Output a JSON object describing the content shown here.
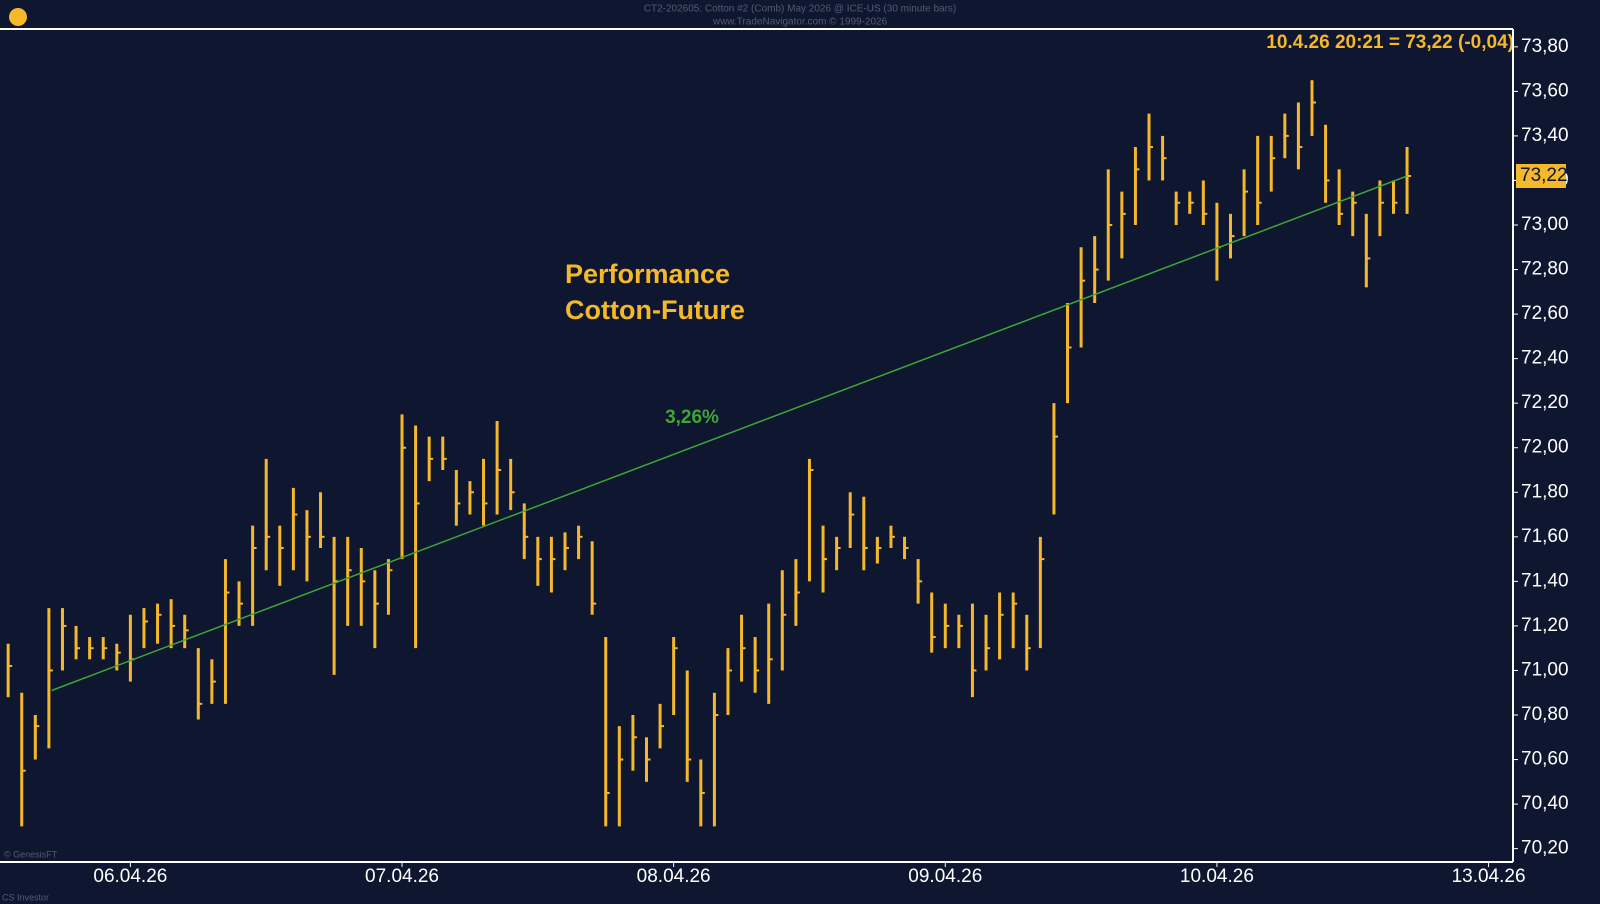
{
  "chart_data": {
    "type": "ohlc",
    "header": "CT2-202605: Cotton #2 (Comb) May 2026 @ ICE-US (30 minute bars)",
    "subheader": "www.TradeNavigator.com © 1999-2026",
    "title": "Performance",
    "subtitle": "Cotton-Future",
    "last_quote": "10.4.26 20:21 = 73,22 (-0,04)",
    "price_tag": {
      "value": 73.22,
      "label": "73,22"
    },
    "source": "© GenesisFT",
    "footer": "CS Investor",
    "color": "#f5b82a",
    "xlim": [
      -0.48,
      5.09
    ],
    "xticks": [
      {
        "value": 0,
        "label": "06.04.26"
      },
      {
        "value": 1,
        "label": "07.04.26"
      },
      {
        "value": 2,
        "label": "08.04.26"
      },
      {
        "value": 3,
        "label": "09.04.26"
      },
      {
        "value": 4,
        "label": "10.04.26"
      },
      {
        "value": 5,
        "label": "13.04.26"
      }
    ],
    "ylim": [
      70.14,
      73.88
    ],
    "yticks": [
      {
        "value": 70.2,
        "label": "70,20"
      },
      {
        "value": 70.4,
        "label": "70,40"
      },
      {
        "value": 70.6,
        "label": "70,60"
      },
      {
        "value": 70.8,
        "label": "70,80"
      },
      {
        "value": 71.0,
        "label": "71,00"
      },
      {
        "value": 71.2,
        "label": "71,20"
      },
      {
        "value": 71.4,
        "label": "71,40"
      },
      {
        "value": 71.6,
        "label": "71,60"
      },
      {
        "value": 71.8,
        "label": "71,80"
      },
      {
        "value": 72.0,
        "label": "72,00"
      },
      {
        "value": 72.2,
        "label": "72,20"
      },
      {
        "value": 72.4,
        "label": "72,40"
      },
      {
        "value": 72.6,
        "label": "72,60"
      },
      {
        "value": 72.8,
        "label": "72,80"
      },
      {
        "value": 73.0,
        "label": "73,00"
      },
      {
        "value": 73.2,
        "label": "73,20"
      },
      {
        "value": 73.4,
        "label": "73,40"
      },
      {
        "value": 73.6,
        "label": "73,60"
      },
      {
        "value": 73.8,
        "label": "73,80"
      }
    ],
    "x": [
      -0.45,
      -0.4,
      -0.35,
      -0.3,
      -0.25,
      -0.2,
      -0.15,
      -0.1,
      -0.05,
      0,
      0.05,
      0.1,
      0.15,
      0.2,
      0.25,
      0.3,
      0.35,
      0.4,
      0.45,
      0.5,
      0.55,
      0.6,
      0.65,
      0.7,
      0.75,
      0.8,
      0.85,
      0.9,
      0.95,
      1,
      1.05,
      1.1,
      1.15,
      1.2,
      1.25,
      1.3,
      1.35,
      1.4,
      1.45,
      1.5,
      1.55,
      1.6,
      1.65,
      1.7,
      1.75,
      1.8,
      1.85,
      1.9,
      1.95,
      2,
      2.05,
      2.1,
      2.15,
      2.2,
      2.25,
      2.3,
      2.35,
      2.4,
      2.45,
      2.5,
      2.55,
      2.6,
      2.65,
      2.7,
      2.75,
      2.8,
      2.85,
      2.9,
      2.95,
      3,
      3.05,
      3.1,
      3.15,
      3.2,
      3.25,
      3.3,
      3.35,
      3.4,
      3.45,
      3.5,
      3.55,
      3.6,
      3.65,
      3.7,
      3.75,
      3.8,
      3.85,
      3.9,
      3.95,
      4,
      4.05,
      4.1,
      4.15,
      4.2,
      4.25,
      4.3,
      4.35,
      4.4,
      4.45,
      4.5,
      4.55,
      4.6,
      4.65,
      4.7
    ],
    "high": [
      71.12,
      70.9,
      70.8,
      71.28,
      71.28,
      71.2,
      71.15,
      71.15,
      71.12,
      71.25,
      71.28,
      71.3,
      71.32,
      71.25,
      71.1,
      71.05,
      71.5,
      71.4,
      71.65,
      71.95,
      71.65,
      71.82,
      71.72,
      71.8,
      71.6,
      71.6,
      71.55,
      71.45,
      71.5,
      72.15,
      72.1,
      72.05,
      72.05,
      71.9,
      71.85,
      71.95,
      72.12,
      71.95,
      71.75,
      71.6,
      71.6,
      71.62,
      71.65,
      71.58,
      71.15,
      70.75,
      70.8,
      70.7,
      70.85,
      71.15,
      71.0,
      70.6,
      70.9,
      71.1,
      71.25,
      71.15,
      71.3,
      71.45,
      71.5,
      71.95,
      71.65,
      71.6,
      71.8,
      71.78,
      71.6,
      71.65,
      71.6,
      71.5,
      71.35,
      71.3,
      71.25,
      71.3,
      71.25,
      71.35,
      71.35,
      71.25,
      71.6,
      72.2,
      72.65,
      72.9,
      72.95,
      73.25,
      73.15,
      73.35,
      73.5,
      73.4,
      73.15,
      73.15,
      73.2,
      73.1,
      73.05,
      73.25,
      73.4,
      73.4,
      73.5,
      73.55,
      73.65,
      73.45,
      73.25,
      73.15,
      73.05,
      73.2,
      73.2,
      73.35
    ],
    "low": [
      70.88,
      70.3,
      70.6,
      70.65,
      71.0,
      71.05,
      71.05,
      71.05,
      71.0,
      70.95,
      71.1,
      71.12,
      71.1,
      71.1,
      70.78,
      70.85,
      70.85,
      71.2,
      71.2,
      71.45,
      71.38,
      71.45,
      71.4,
      71.55,
      70.98,
      71.2,
      71.2,
      71.1,
      71.25,
      71.5,
      71.1,
      71.85,
      71.9,
      71.65,
      71.7,
      71.65,
      71.7,
      71.72,
      71.5,
      71.38,
      71.35,
      71.45,
      71.5,
      71.25,
      70.3,
      70.3,
      70.55,
      70.5,
      70.65,
      70.8,
      70.5,
      70.3,
      70.3,
      70.8,
      70.95,
      70.9,
      70.85,
      71.0,
      71.2,
      71.4,
      71.35,
      71.45,
      71.55,
      71.45,
      71.48,
      71.55,
      71.5,
      71.3,
      71.08,
      71.1,
      71.1,
      70.88,
      71.0,
      71.05,
      71.1,
      71.0,
      71.1,
      71.7,
      72.2,
      72.45,
      72.65,
      72.75,
      72.85,
      73.0,
      73.2,
      73.2,
      73.0,
      73.05,
      73.0,
      72.75,
      72.85,
      72.95,
      73.0,
      73.15,
      73.3,
      73.25,
      73.4,
      73.1,
      73.0,
      72.95,
      72.72,
      72.95,
      73.05,
      73.05
    ],
    "close": [
      71.02,
      70.55,
      70.75,
      71.0,
      71.2,
      71.1,
      71.1,
      71.1,
      71.08,
      71.05,
      71.22,
      71.25,
      71.2,
      71.18,
      70.85,
      70.95,
      71.35,
      71.3,
      71.55,
      71.6,
      71.55,
      71.7,
      71.6,
      71.6,
      71.4,
      71.45,
      71.4,
      71.3,
      71.45,
      72.0,
      71.75,
      71.95,
      71.95,
      71.75,
      71.8,
      71.75,
      71.9,
      71.8,
      71.6,
      71.5,
      71.5,
      71.55,
      71.6,
      71.3,
      70.45,
      70.6,
      70.7,
      70.6,
      70.75,
      71.1,
      70.6,
      70.45,
      70.8,
      71.0,
      71.1,
      71.0,
      71.05,
      71.25,
      71.35,
      71.9,
      71.5,
      71.55,
      71.7,
      71.55,
      71.55,
      71.6,
      71.55,
      71.4,
      71.15,
      71.2,
      71.2,
      71.0,
      71.1,
      71.25,
      71.3,
      71.1,
      71.5,
      72.05,
      72.45,
      72.75,
      72.8,
      73.0,
      73.05,
      73.25,
      73.35,
      73.3,
      73.1,
      73.1,
      73.05,
      72.9,
      72.95,
      73.15,
      73.1,
      73.3,
      73.4,
      73.35,
      73.55,
      73.2,
      73.05,
      73.1,
      72.85,
      73.1,
      73.1,
      73.22
    ],
    "trendline": {
      "x": [
        -0.29,
        4.7
      ],
      "y": [
        70.91,
        73.22
      ],
      "label": "3,26%",
      "color": "#3fa535"
    }
  }
}
